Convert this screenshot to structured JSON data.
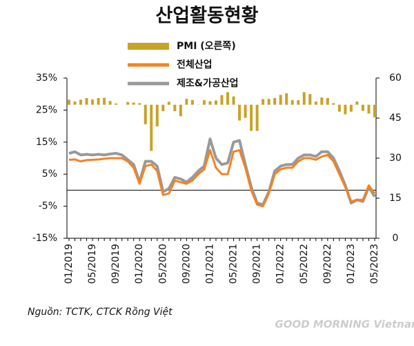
{
  "chart_data": {
    "type": "combo",
    "title": "산업활동현황",
    "source": "Nguồn: TCTK, CTCK Rồng Việt",
    "watermark": "GOOD MORNING Vietnam",
    "categories": [
      "01/2019",
      null,
      null,
      null,
      "05/2019",
      null,
      null,
      null,
      "09/2019",
      null,
      null,
      null,
      "01/2020",
      null,
      null,
      null,
      "05/2020",
      null,
      null,
      null,
      "09/2020",
      null,
      null,
      null,
      "01/2021",
      null,
      null,
      null,
      "05/2021",
      null,
      null,
      null,
      "09/2021",
      null,
      null,
      null,
      "01/2022",
      null,
      null,
      null,
      "05/2022",
      null,
      null,
      null,
      "09/2022",
      null,
      null,
      null,
      "01/2023",
      null,
      null,
      null,
      "05/2023"
    ],
    "ylim": [
      -15,
      35
    ],
    "yticks": [
      {
        "value": -15,
        "label": "-15%"
      },
      {
        "value": -5,
        "label": "-5%"
      },
      {
        "value": 5,
        "label": "5%"
      },
      {
        "value": 15,
        "label": "15%"
      },
      {
        "value": 25,
        "label": "25%"
      },
      {
        "value": 35,
        "label": "35%"
      }
    ],
    "y2lim": [
      0,
      60
    ],
    "y2ticks": [
      0,
      15,
      30,
      45,
      60
    ],
    "series": [
      {
        "name": "PMI (오른쪽)",
        "type": "bar",
        "axis": "y2",
        "color": "#c9a227",
        "baseline": 50,
        "values": [
          51.9,
          51.2,
          51.9,
          52.5,
          52.0,
          52.5,
          52.6,
          51.4,
          50.5,
          50.0,
          51.0,
          50.8,
          50.6,
          42.7,
          32.7,
          41.9,
          47.6,
          51.1,
          47.6,
          45.7,
          52.2,
          51.8,
          49.9,
          51.7,
          51.3,
          51.6,
          53.6,
          54.7,
          53.1,
          44.1,
          45.1,
          40.2,
          40.2,
          52.1,
          52.2,
          52.5,
          53.7,
          54.3,
          51.7,
          51.7,
          54.7,
          54.0,
          51.2,
          52.7,
          52.5,
          50.6,
          47.4,
          46.4,
          47.4,
          51.2,
          47.7,
          46.7,
          45.3
        ]
      },
      {
        "name": "전체산업",
        "type": "line",
        "color": "#f58220",
        "values": [
          9.5,
          9.6,
          9.0,
          9.4,
          9.5,
          9.6,
          9.8,
          10.0,
          10.0,
          10.0,
          9.0,
          7.0,
          2.0,
          7.5,
          8.0,
          6.0,
          -1.5,
          -1.0,
          3.0,
          2.5,
          2.0,
          3.0,
          5.0,
          6.5,
          12.5,
          7.0,
          5.0,
          5.0,
          12.0,
          12.5,
          7.0,
          0.0,
          -4.5,
          -5.0,
          -1.0,
          5.0,
          6.5,
          7.0,
          7.0,
          9.0,
          10.0,
          10.0,
          9.5,
          10.5,
          11.0,
          9.0,
          5.0,
          1.0,
          -3.5,
          -3.0,
          -3.0,
          1.5,
          -1.0
        ]
      },
      {
        "name": "제조&가공산업",
        "type": "line",
        "color": "#999999",
        "values": [
          11.5,
          12.0,
          11.0,
          11.2,
          11.0,
          11.2,
          11.0,
          11.3,
          11.5,
          11.0,
          9.5,
          8.0,
          2.5,
          9.0,
          9.0,
          7.5,
          -0.5,
          0.5,
          4.0,
          3.5,
          2.5,
          4.0,
          6.0,
          7.5,
          16.0,
          10.0,
          8.0,
          8.5,
          15.0,
          15.5,
          8.0,
          1.0,
          -4.0,
          -4.5,
          -0.5,
          6.0,
          7.5,
          8.0,
          8.0,
          10.0,
          11.0,
          11.0,
          10.5,
          12.0,
          12.0,
          10.0,
          6.0,
          1.5,
          -4.0,
          -3.0,
          -3.5,
          1.0,
          -2.0
        ]
      }
    ]
  }
}
